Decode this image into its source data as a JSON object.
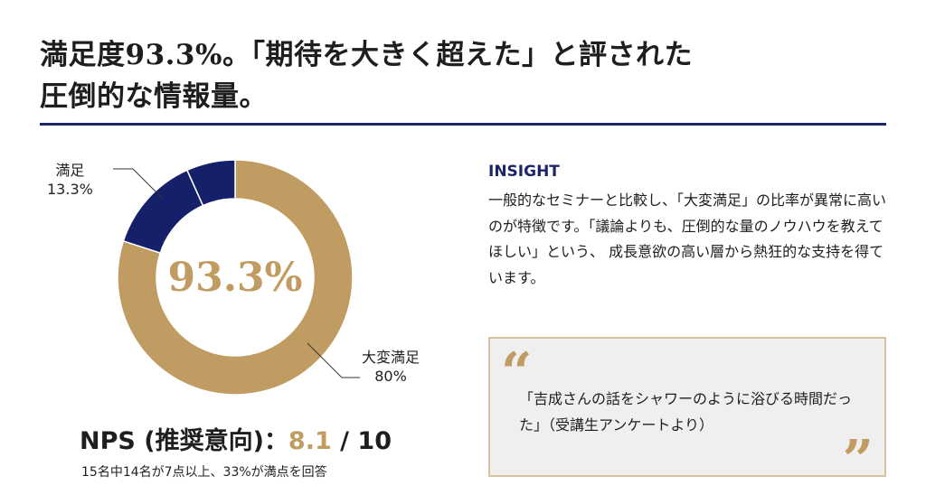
{
  "header": {
    "title_line1": "満足度93.3%。「期待を大きく超えた」と評された",
    "title_line2": "圧倒的な情報量。"
  },
  "colors": {
    "gold": "#c19c62",
    "navy": "#1c2566"
  },
  "chart_data": {
    "type": "pie",
    "style": "donut",
    "center_label": "93.3%",
    "slices": [
      {
        "name": "大変満足",
        "value": 80,
        "label": "80%",
        "color": "#c19c62"
      },
      {
        "name": "満足",
        "value": 13.3,
        "label": "13.3%",
        "color": "#16206a"
      },
      {
        "name": "",
        "value": 6.7,
        "label": "",
        "color": "#16206a"
      }
    ]
  },
  "nps": {
    "label": "NPS (推奨意向)：",
    "score": "8.1",
    "suffix": " / 10",
    "note": "15名中14名が7点以上、33%が満点を回答"
  },
  "insight": {
    "heading": "INSIGHT",
    "body": "一般的なセミナーと比較し、「大変満足」の比率が異常に高いのが特徴です。「議論よりも、圧倒的な量のノウハウを教えてほしい」という、 成長意欲の高い層から熱狂的な支持を得ています。"
  },
  "quote": {
    "open_mark": "“",
    "text": "「吉成さんの話をシャワーのように浴びる時間だった」（受講生アンケートより）",
    "close_mark": "”"
  }
}
